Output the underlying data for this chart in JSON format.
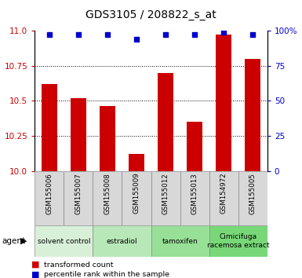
{
  "title": "GDS3105 / 208822_s_at",
  "samples": [
    "GSM155006",
    "GSM155007",
    "GSM155008",
    "GSM155009",
    "GSM155012",
    "GSM155013",
    "GSM154972",
    "GSM155005"
  ],
  "bar_values": [
    10.62,
    10.52,
    10.46,
    10.12,
    10.7,
    10.35,
    10.97,
    10.8
  ],
  "percentile_values": [
    97,
    97,
    97,
    94,
    97,
    97,
    99,
    97
  ],
  "ylim_left": [
    10.0,
    11.0
  ],
  "ylim_right": [
    0,
    100
  ],
  "yticks_left": [
    10.0,
    10.25,
    10.5,
    10.75,
    11.0
  ],
  "yticks_right": [
    0,
    25,
    50,
    75,
    100
  ],
  "bar_color": "#cc0000",
  "dot_color": "#0000cc",
  "agent_groups": [
    {
      "label": "solvent control",
      "samples": [
        0,
        1
      ],
      "color": "#d8f0d8"
    },
    {
      "label": "estradiol",
      "samples": [
        2,
        3
      ],
      "color": "#b8e8b8"
    },
    {
      "label": "tamoxifen",
      "samples": [
        4,
        5
      ],
      "color": "#98e098"
    },
    {
      "label": "Cimicifuga\nracemosa extract",
      "samples": [
        6,
        7
      ],
      "color": "#78d878"
    }
  ],
  "legend_bar_label": "transformed count",
  "legend_dot_label": "percentile rank within the sample",
  "agent_label": "agent",
  "tick_label_color_left": "#cc0000",
  "tick_label_color_right": "#0000cc",
  "bar_width": 0.55,
  "sample_box_color": "#d8d8d8"
}
